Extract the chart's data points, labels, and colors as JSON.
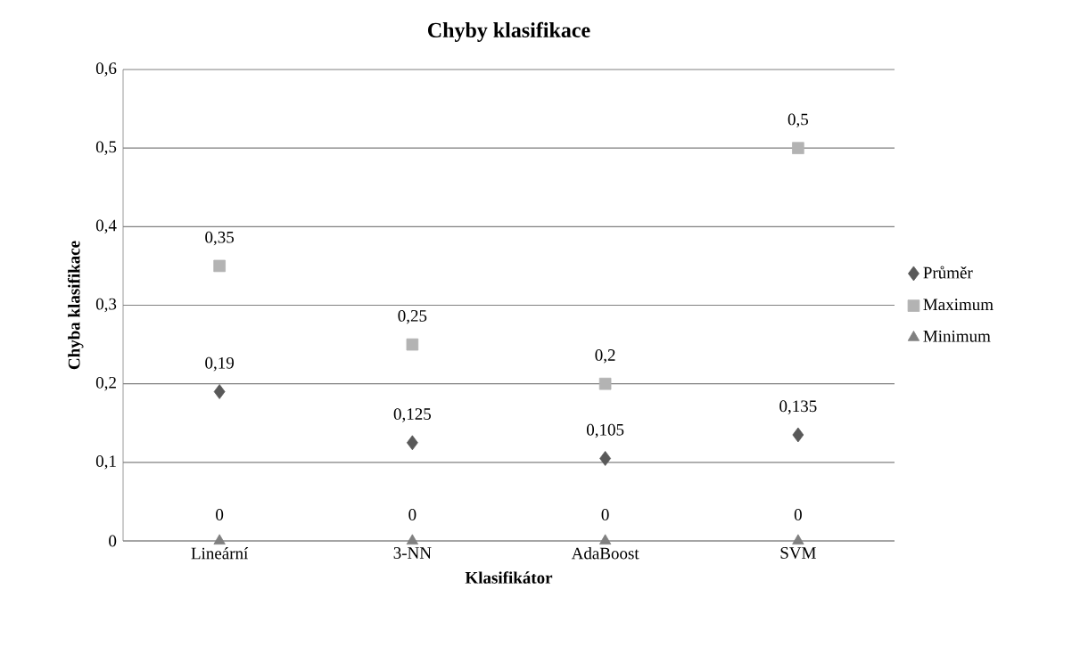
{
  "chart_data": {
    "type": "scatter",
    "title": "Chyby klasifikace",
    "xlabel": "Klasifikátor",
    "ylabel": "Chyba klasifikace",
    "categories": [
      "Lineární",
      "3-NN",
      "AdaBoost",
      "SVM"
    ],
    "series": [
      {
        "name": "Průměr",
        "color": "#595959",
        "marker": "diamond",
        "values": [
          0.19,
          0.125,
          0.105,
          0.135
        ],
        "value_labels": [
          "0,19",
          "0,125",
          "0,105",
          "0,135"
        ]
      },
      {
        "name": "Maximum",
        "color": "#b3b3b3",
        "marker": "square",
        "values": [
          0.35,
          0.25,
          0.2,
          0.5
        ],
        "value_labels": [
          "0,35",
          "0,25",
          "0,2",
          "0,5"
        ]
      },
      {
        "name": "Minimum",
        "color": "#808080",
        "marker": "triangle",
        "values": [
          0,
          0,
          0,
          0
        ],
        "value_labels": [
          "0",
          "0",
          "0",
          "0"
        ]
      }
    ],
    "ylim": [
      0,
      0.6
    ],
    "yticks": [
      0,
      {
        "value": 0.1,
        "label": "0,1"
      },
      {
        "value": 0.2,
        "label": "0,2"
      },
      {
        "value": 0.3,
        "label": "0,3"
      },
      {
        "value": 0.4,
        "label": "0,4"
      },
      {
        "value": 0.5,
        "label": "0,5"
      },
      {
        "value": 0.6,
        "label": "0,6"
      }
    ],
    "grid": "y",
    "legend": "right"
  }
}
